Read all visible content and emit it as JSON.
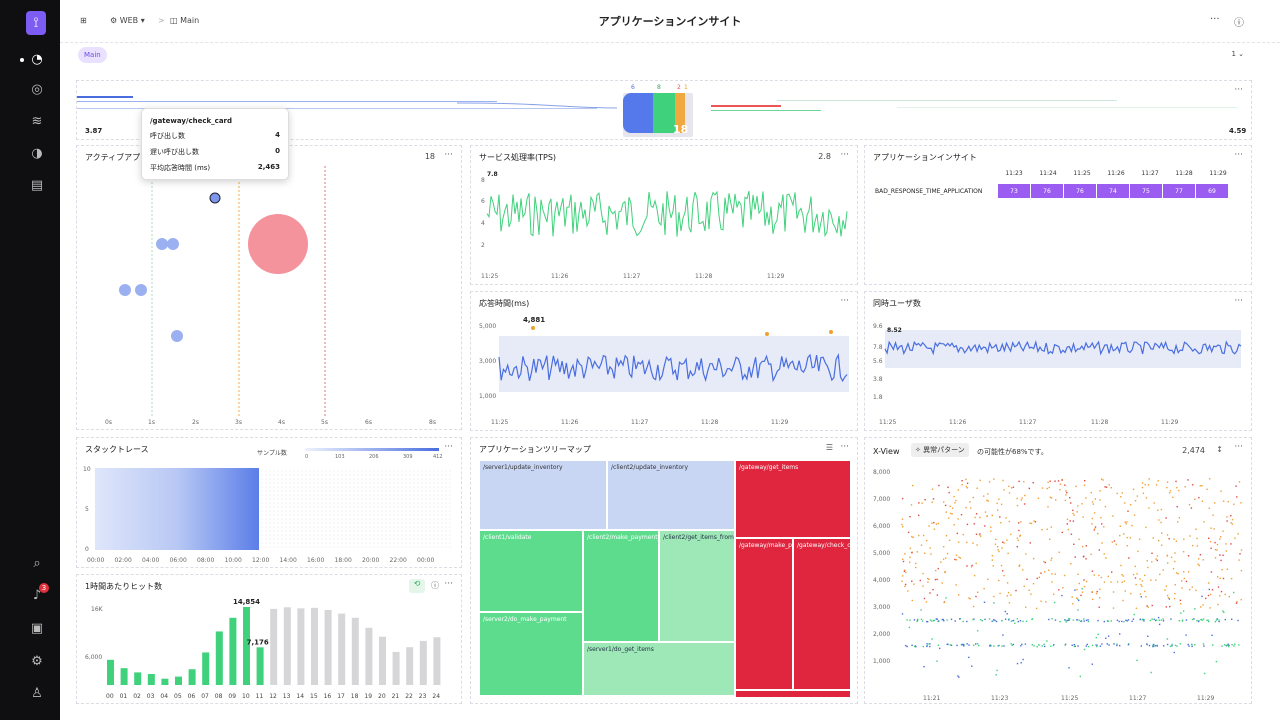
{
  "topbar": {
    "crumb_app": "WEB",
    "crumb_sub": "Main",
    "title": "アプリケーションインサイト"
  },
  "tabs": {
    "main": "Main",
    "page": "1"
  },
  "flow": {
    "left_value": "3.87",
    "right_value": "4.59",
    "center_count": "18",
    "top_counts": [
      "6",
      "8",
      "2",
      "1"
    ]
  },
  "active_app": {
    "title": "アクティブアプリ",
    "count": "18",
    "x_ticks": [
      "0s",
      "1s",
      "2s",
      "3s",
      "4s",
      "5s",
      "6s",
      "8s"
    ],
    "tooltip": {
      "name": "/gateway/check_card",
      "rows": [
        {
          "label": "呼び出し数",
          "value": "4"
        },
        {
          "label": "遅い呼び出し数",
          "value": "0"
        },
        {
          "label": "平均応答時間 (ms)",
          "value": "2,463"
        }
      ]
    }
  },
  "tps": {
    "title": "サービス処理率(TPS)",
    "value": "2.8",
    "peak": "7.8",
    "y_ticks": [
      "8",
      "6",
      "4",
      "2"
    ],
    "x_ticks": [
      "11:25",
      "11:26",
      "11:27",
      "11:28",
      "11:29"
    ]
  },
  "insight": {
    "title": "アプリケーションインサイト",
    "times": [
      "11:23",
      "11:24",
      "11:25",
      "11:26",
      "11:27",
      "11:28",
      "11:29"
    ],
    "row_label": "BAD_RESPONSE_TIME_APPLICATION",
    "values": [
      "73",
      "76",
      "76",
      "74",
      "75",
      "77",
      "69"
    ]
  },
  "resp": {
    "title": "応答時間(ms)",
    "peak": "4,881",
    "y_ticks": [
      "5,000",
      "3,000",
      "1,000"
    ],
    "x_ticks": [
      "11:25",
      "11:26",
      "11:27",
      "11:28",
      "11:29"
    ]
  },
  "users": {
    "title": "同時ユーザ数",
    "peak": "8.52",
    "y_ticks": [
      "9.6",
      "7.8",
      "5.6",
      "3.8",
      "1.8"
    ],
    "x_ticks": [
      "11:25",
      "11:26",
      "11:27",
      "11:28",
      "11:29"
    ]
  },
  "stack": {
    "title": "スタックトレース",
    "legend_label": "サンプル数",
    "legend_ticks": [
      "0",
      "103",
      "206",
      "309",
      "412"
    ],
    "y_ticks": [
      "10",
      "5",
      "0"
    ],
    "x_ticks": [
      "00:00",
      "02:00",
      "04:00",
      "06:00",
      "08:00",
      "10:00",
      "12:00",
      "14:00",
      "16:00",
      "18:00",
      "20:00",
      "22:00",
      "00:00"
    ]
  },
  "treemap": {
    "title": "アプリケーションツリーマップ",
    "cells": [
      "/server1/update_inventory",
      "/client2/update_inventory",
      "/gateway/get_items",
      "/client1/validate",
      "/client2/make_payment_m_exampl",
      "/client2/get_items_from_server",
      "/gateway/make_payment",
      "/gateway/check_card",
      "/server2/do_make_payment",
      "/server1/do_get_items"
    ]
  },
  "xview": {
    "title": "X-View",
    "pattern_label": "異常パターン",
    "pattern_text": "の可能性が68%です。",
    "count": "2,474",
    "y_ticks": [
      "8,000",
      "7,000",
      "6,000",
      "5,000",
      "4,000",
      "3,000",
      "2,000",
      "1,000"
    ],
    "x_ticks": [
      "11:21",
      "11:23",
      "11:25",
      "11:27",
      "11:29"
    ]
  },
  "hits": {
    "title": "1時間あたりヒット数",
    "y_ticks": [
      "16K",
      "6,000"
    ],
    "peak_label": "14,854",
    "current_label": "7,176",
    "hours": [
      "00",
      "01",
      "02",
      "03",
      "04",
      "05",
      "06",
      "07",
      "08",
      "09",
      "10",
      "11",
      "12",
      "13",
      "14",
      "15",
      "16",
      "17",
      "18",
      "19",
      "20",
      "21",
      "22",
      "23",
      "24"
    ],
    "today": [
      4800,
      3200,
      2400,
      2100,
      1200,
      1600,
      3000,
      6200,
      10200,
      12800,
      14854,
      7176
    ],
    "yesterday": [
      0,
      0,
      0,
      0,
      0,
      0,
      0,
      0,
      0,
      0,
      0,
      0,
      14500,
      14800,
      14600,
      14700,
      14300,
      13600,
      12800,
      10900,
      9200,
      6300,
      7200,
      8400,
      9100
    ]
  }
}
